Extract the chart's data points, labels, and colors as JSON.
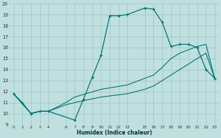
{
  "xlabel": "Humidex (Indice chaleur)",
  "bg_color": "#c0e0e0",
  "grid_color": "#a0c8c8",
  "line_color": "#007070",
  "xlim": [
    -0.5,
    23.5
  ],
  "ylim": [
    9,
    20
  ],
  "xticks": [
    0,
    1,
    2,
    3,
    4,
    6,
    7,
    8,
    9,
    10,
    11,
    12,
    13,
    15,
    16,
    17,
    18,
    19,
    20,
    21,
    22,
    23
  ],
  "yticks": [
    9,
    10,
    11,
    12,
    13,
    14,
    15,
    16,
    17,
    18,
    19,
    20
  ],
  "series1_x": [
    0,
    1,
    2,
    3,
    4,
    7,
    8,
    9,
    10,
    11,
    12,
    13,
    15,
    16,
    17,
    18,
    19,
    20,
    21,
    22,
    23
  ],
  "series1_y": [
    11.8,
    11.0,
    10.0,
    10.2,
    10.2,
    9.4,
    11.3,
    13.3,
    15.3,
    18.9,
    18.9,
    19.0,
    19.6,
    19.5,
    18.3,
    16.1,
    16.3,
    16.3,
    16.0,
    14.0,
    13.2
  ],
  "series2_x": [
    0,
    2,
    3,
    4,
    6,
    7,
    10,
    13,
    15,
    16,
    17,
    18,
    19,
    20,
    21,
    22,
    23
  ],
  "series2_y": [
    11.8,
    10.0,
    10.2,
    10.2,
    11.0,
    11.5,
    12.2,
    12.6,
    13.2,
    13.5,
    14.2,
    15.0,
    15.5,
    15.8,
    16.1,
    16.3,
    13.2
  ],
  "series3_x": [
    0,
    2,
    3,
    4,
    6,
    7,
    10,
    13,
    15,
    16,
    17,
    18,
    19,
    20,
    21,
    22,
    23
  ],
  "series3_y": [
    11.8,
    10.0,
    10.2,
    10.2,
    10.8,
    11.0,
    11.5,
    11.8,
    12.2,
    12.5,
    13.0,
    13.5,
    14.0,
    14.5,
    15.0,
    15.5,
    13.2
  ]
}
